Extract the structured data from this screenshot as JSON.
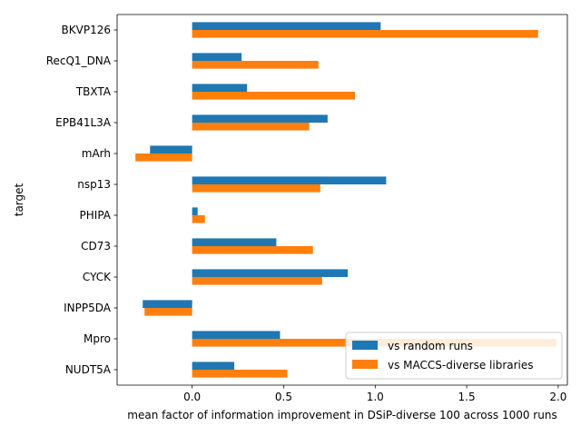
{
  "chart_data": {
    "type": "bar",
    "orientation": "horizontal",
    "xlabel": "mean factor of information improvement in DSiP-diverse 100 across 1000 runs",
    "ylabel": "target",
    "xlim": [
      -0.41,
      2.05
    ],
    "xticks": [
      0.0,
      0.5,
      1.0,
      1.5,
      2.0
    ],
    "xtick_labels": [
      "0.0",
      "0.5",
      "1.0",
      "1.5",
      "2.0"
    ],
    "grid": false,
    "legend_position": "lower right",
    "categories": [
      "BKVP126",
      "RecQ1_DNA",
      "TBXTA",
      "EPB41L3A",
      "mArh",
      "nsp13",
      "PHIPA",
      "CD73",
      "CYCK",
      "INPP5DA",
      "Mpro",
      "NUDT5A"
    ],
    "series": [
      {
        "name": "vs random runs",
        "color": "#1f77b4",
        "values": [
          1.03,
          0.27,
          0.3,
          0.74,
          -0.23,
          1.06,
          0.03,
          0.46,
          0.85,
          -0.27,
          0.48,
          0.23
        ]
      },
      {
        "name": "vs MACCS-diverse libraries",
        "color": "#ff7f0e",
        "values": [
          1.89,
          0.69,
          0.89,
          0.64,
          -0.31,
          0.7,
          0.07,
          0.66,
          0.71,
          -0.26,
          1.99,
          0.52
        ]
      }
    ]
  }
}
